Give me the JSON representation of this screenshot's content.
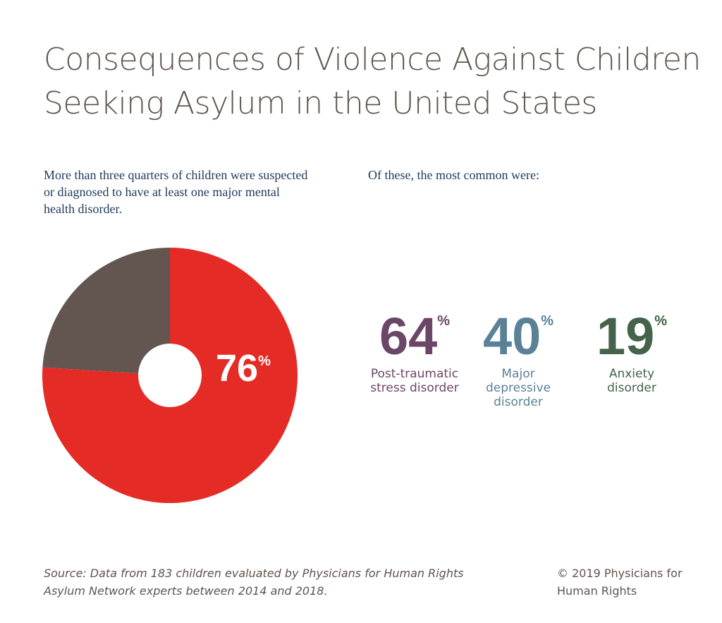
{
  "title": "Consequences of Violence Against Children Seeking Asylum in the United States",
  "chart_data": [
    {
      "type": "donut",
      "subtitle": "More than three quarters  of children were suspected or diagnosed to have at least one major mental health disorder.",
      "values": [
        76,
        24
      ],
      "colors": [
        "#e52b25",
        "#635550"
      ],
      "unit": "%"
    },
    {
      "type": "stat",
      "subtitle": "Of these, the most common were:",
      "categories": [
        "Post-traumatic stress disorder",
        "Major depressive disorder",
        "Anxiety disorder"
      ],
      "values": [
        64,
        40,
        19
      ],
      "colors": [
        "#6b4666",
        "#5b8197",
        "#44634a"
      ],
      "unit": "%"
    }
  ],
  "source": "Source: Data from 183 children evaluated by Physicians for Human Rights Asylum Network experts between 2014 and 2018.",
  "copyright": "© 2019 Physicians for Human Rights"
}
